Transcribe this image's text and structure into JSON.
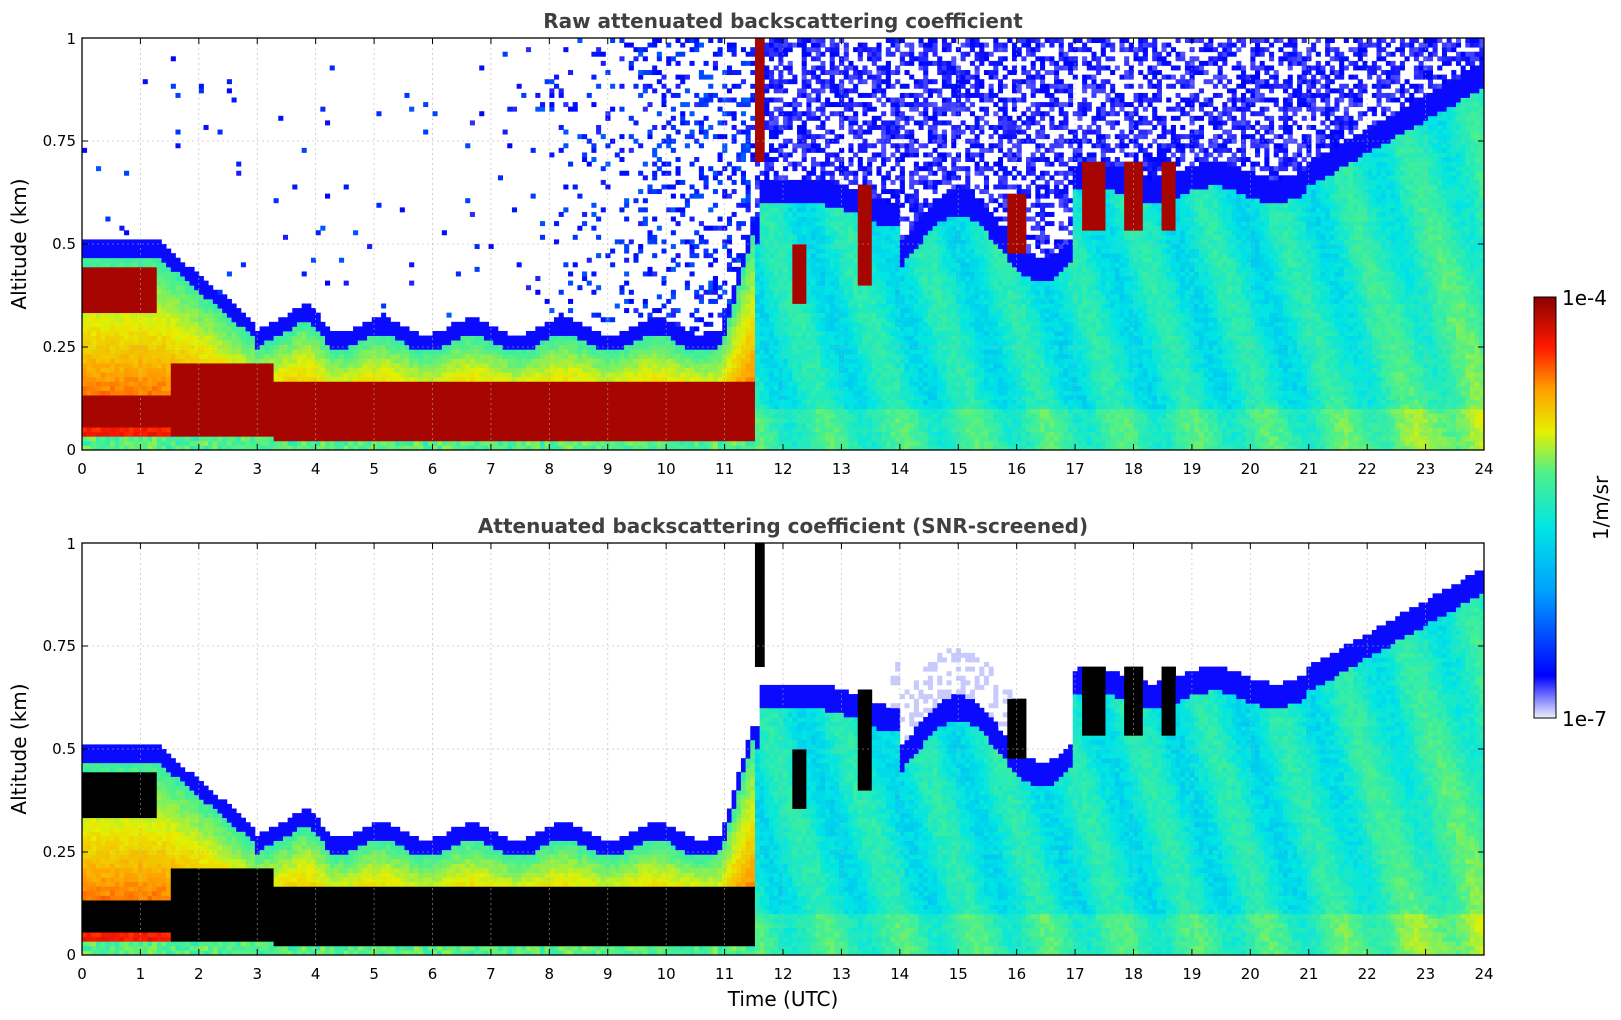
{
  "chart_data": {
    "type": "heatmap",
    "colorbar": {
      "label": "1/m/sr",
      "max_label": "1e-4",
      "min_label": "1e-7",
      "colormap": [
        "#eef0fb",
        "#0000ff",
        "#00a0ff",
        "#00e5e5",
        "#4cf08c",
        "#e6f000",
        "#ffa000",
        "#ff1a00",
        "#8b0000"
      ]
    },
    "panels": [
      {
        "title": "Raw attenuated backscattering coefficient",
        "ylabel": "Altitude (km)",
        "xlabel": "",
        "xlim": [
          0,
          24
        ],
        "ylim": [
          0,
          1
        ],
        "x_ticks": [
          "0",
          "1",
          "2",
          "3",
          "4",
          "5",
          "6",
          "7",
          "8",
          "9",
          "10",
          "11",
          "12",
          "13",
          "14",
          "15",
          "16",
          "17",
          "18",
          "19",
          "20",
          "21",
          "22",
          "23",
          "24"
        ],
        "y_ticks": [
          "0",
          "0.25",
          "0.5",
          "0.75",
          "1"
        ],
        "grid": true,
        "screened": false
      },
      {
        "title": "Attenuated backscattering coefficient (SNR-screened)",
        "ylabel": "Altitude (km)",
        "xlabel": "Time (UTC)",
        "xlim": [
          0,
          24
        ],
        "ylim": [
          0,
          1
        ],
        "x_ticks": [
          "0",
          "1",
          "2",
          "3",
          "4",
          "5",
          "6",
          "7",
          "8",
          "9",
          "10",
          "11",
          "12",
          "13",
          "14",
          "15",
          "16",
          "17",
          "18",
          "19",
          "20",
          "21",
          "22",
          "23",
          "24"
        ],
        "y_ticks": [
          "0",
          "0.25",
          "0.5",
          "0.75",
          "1"
        ],
        "grid": true,
        "screened": true
      }
    ]
  }
}
